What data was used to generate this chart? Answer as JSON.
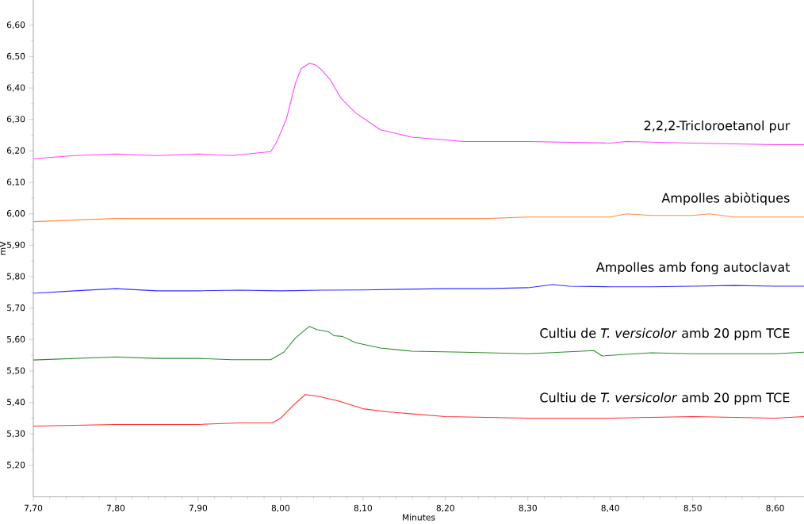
{
  "chart_data": {
    "type": "line",
    "xlabel": "Minutes",
    "ylabel": "mV",
    "xlim": [
      7.7,
      8.635
    ],
    "ylim": [
      5.1,
      6.68
    ],
    "xticks": [
      {
        "value": 7.7,
        "label": "7,70"
      },
      {
        "value": 7.8,
        "label": "7,80"
      },
      {
        "value": 7.9,
        "label": "7,90"
      },
      {
        "value": 8.0,
        "label": "8,00"
      },
      {
        "value": 8.1,
        "label": "8,10"
      },
      {
        "value": 8.2,
        "label": "8,20"
      },
      {
        "value": 8.3,
        "label": "8,30"
      },
      {
        "value": 8.4,
        "label": "8,40"
      },
      {
        "value": 8.5,
        "label": "8,50"
      },
      {
        "value": 8.6,
        "label": "8,60"
      }
    ],
    "yticks": [
      {
        "value": 5.2,
        "label": "5,20"
      },
      {
        "value": 5.3,
        "label": "5,30"
      },
      {
        "value": 5.4,
        "label": "5,40"
      },
      {
        "value": 5.5,
        "label": "5,50"
      },
      {
        "value": 5.6,
        "label": "5,60"
      },
      {
        "value": 5.7,
        "label": "5,70"
      },
      {
        "value": 5.8,
        "label": "5,80"
      },
      {
        "value": 5.9,
        "label": "5,90"
      },
      {
        "value": 6.0,
        "label": "6,00"
      },
      {
        "value": 6.1,
        "label": "6,10"
      },
      {
        "value": 6.2,
        "label": "6,20"
      },
      {
        "value": 6.3,
        "label": "6,30"
      },
      {
        "value": 6.4,
        "label": "6,40"
      },
      {
        "value": 6.5,
        "label": "6,50"
      },
      {
        "value": 6.6,
        "label": "6,60"
      }
    ],
    "series": [
      {
        "name": "2,2,2-Tricloroetanol pur",
        "color": "#ff40ff",
        "x": [
          7.7,
          7.75,
          7.8,
          7.85,
          7.9,
          7.941,
          7.988,
          7.995,
          8.007,
          8.018,
          8.025,
          8.035,
          8.042,
          8.05,
          8.06,
          8.074,
          8.091,
          8.121,
          8.159,
          8.191,
          8.222,
          8.3,
          8.4,
          8.42,
          8.5,
          8.6,
          8.635
        ],
        "values": [
          6.175,
          6.185,
          6.19,
          6.185,
          6.19,
          6.185,
          6.198,
          6.227,
          6.301,
          6.415,
          6.462,
          6.479,
          6.474,
          6.457,
          6.427,
          6.365,
          6.321,
          6.267,
          6.244,
          6.237,
          6.23,
          6.23,
          6.225,
          6.23,
          6.225,
          6.22,
          6.22
        ]
      },
      {
        "name": "Ampolles abiòtiques",
        "color": "#ff8c40",
        "x": [
          7.7,
          7.75,
          7.8,
          7.85,
          7.9,
          7.95,
          8.0,
          8.05,
          8.1,
          8.15,
          8.2,
          8.25,
          8.3,
          8.35,
          8.4,
          8.42,
          8.45,
          8.5,
          8.52,
          8.55,
          8.6,
          8.635
        ],
        "values": [
          5.975,
          5.98,
          5.985,
          5.985,
          5.985,
          5.985,
          5.985,
          5.985,
          5.985,
          5.985,
          5.985,
          5.985,
          5.99,
          5.99,
          5.99,
          6.0,
          5.995,
          5.995,
          6.0,
          5.99,
          5.99,
          5.99
        ]
      },
      {
        "name": "Ampolles amb fong autoclavat",
        "color": "#3030ff",
        "x": [
          7.7,
          7.75,
          7.8,
          7.85,
          7.9,
          7.95,
          8.0,
          8.05,
          8.1,
          8.15,
          8.2,
          8.25,
          8.3,
          8.33,
          8.35,
          8.4,
          8.45,
          8.5,
          8.55,
          8.6,
          8.635
        ],
        "values": [
          5.747,
          5.755,
          5.762,
          5.755,
          5.755,
          5.757,
          5.755,
          5.757,
          5.758,
          5.76,
          5.762,
          5.762,
          5.765,
          5.775,
          5.77,
          5.768,
          5.768,
          5.77,
          5.772,
          5.77,
          5.77
        ]
      },
      {
        "name": "Cultiu de *T. versicolor* amb 20 ppm TCE",
        "color": "#2e8b2e",
        "x": [
          7.7,
          7.8,
          7.85,
          7.9,
          7.941,
          7.988,
          8.004,
          8.018,
          8.035,
          8.044,
          8.058,
          8.065,
          8.075,
          8.091,
          8.121,
          8.159,
          8.222,
          8.3,
          8.38,
          8.39,
          8.45,
          8.5,
          8.6,
          8.635
        ],
        "values": [
          5.535,
          5.545,
          5.54,
          5.54,
          5.536,
          5.536,
          5.56,
          5.605,
          5.642,
          5.632,
          5.625,
          5.612,
          5.61,
          5.59,
          5.573,
          5.563,
          5.56,
          5.555,
          5.565,
          5.548,
          5.558,
          5.555,
          5.555,
          5.56
        ]
      },
      {
        "name": "Cultiu de *T. versicolor* amb 20 ppm TCE",
        "color": "#ff3030",
        "x": [
          7.7,
          7.8,
          7.9,
          7.95,
          7.99,
          8.0,
          8.015,
          8.03,
          8.045,
          8.07,
          8.1,
          8.13,
          8.2,
          8.3,
          8.4,
          8.5,
          8.6,
          8.635
        ],
        "values": [
          5.325,
          5.33,
          5.33,
          5.335,
          5.335,
          5.35,
          5.39,
          5.425,
          5.42,
          5.405,
          5.38,
          5.37,
          5.355,
          5.35,
          5.35,
          5.355,
          5.35,
          5.355
        ]
      }
    ]
  }
}
